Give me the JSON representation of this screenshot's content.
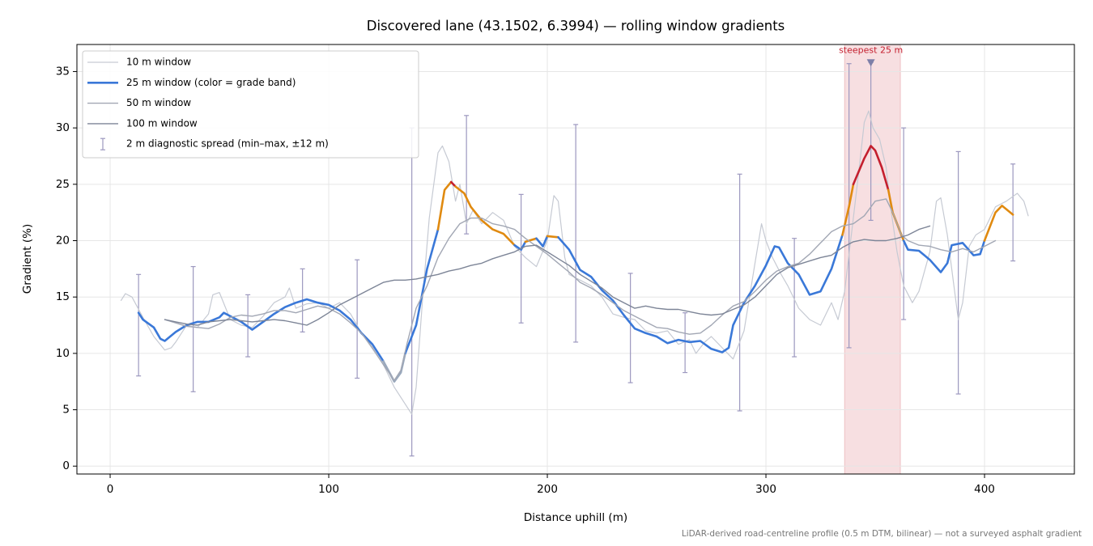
{
  "chart_data": {
    "type": "line",
    "title": "Discovered lane (43.1502, 6.3994) — rolling window gradients",
    "x_label": "Distance uphill (m)",
    "y_label": "Gradient (%)",
    "footnote": "LiDAR-derived road-centreline profile (0.5 m DTM, bilinear) — not a surveyed asphalt gradient",
    "xlim": [
      -15.2,
      441.1
    ],
    "ylim": [
      -0.7,
      37.4
    ],
    "xticks": [
      0,
      100,
      200,
      300,
      400
    ],
    "yticks": [
      0,
      5,
      10,
      15,
      20,
      25,
      30,
      35
    ],
    "grid": true,
    "legend": "upper left",
    "series": [
      {
        "name": "10 m window",
        "color": "#c6cad3",
        "width": 1.2,
        "x": [
          5,
          7,
          10,
          15,
          20,
          25,
          28,
          30,
          35,
          40,
          45,
          47,
          50,
          55,
          60,
          65,
          70,
          75,
          80,
          82,
          85,
          90,
          95,
          100,
          105,
          110,
          115,
          120,
          125,
          130,
          135,
          138,
          140,
          143,
          146,
          150,
          152,
          155,
          158,
          160,
          163,
          166,
          170,
          175,
          180,
          185,
          190,
          195,
          200,
          203,
          205,
          208,
          210,
          215,
          220,
          225,
          230,
          235,
          240,
          245,
          250,
          255,
          260,
          265,
          268,
          272,
          275,
          280,
          285,
          290,
          295,
          298,
          300,
          303,
          307,
          310,
          315,
          320,
          325,
          330,
          333,
          336,
          340,
          343,
          345,
          347,
          349,
          352,
          355,
          357,
          360,
          363,
          367,
          370,
          375,
          378,
          380,
          383,
          386,
          388,
          390,
          393,
          396,
          400,
          405,
          410,
          415,
          418,
          420
        ],
        "values": [
          14.7,
          15.3,
          15.0,
          13.2,
          11.5,
          10.3,
          10.5,
          11.0,
          12.5,
          12.3,
          13.5,
          15.2,
          15.4,
          13.0,
          12.5,
          12.3,
          13.3,
          14.5,
          15.0,
          15.8,
          14.0,
          14.4,
          14.5,
          14.0,
          14.5,
          13.5,
          11.8,
          10.4,
          9.0,
          7.0,
          5.5,
          4.6,
          7.0,
          15.0,
          22.0,
          27.8,
          28.4,
          27.0,
          23.5,
          25.0,
          21.5,
          22.7,
          21.5,
          22.5,
          21.8,
          19.5,
          18.5,
          17.7,
          20.0,
          24.0,
          23.5,
          18.5,
          17.0,
          16.5,
          16.0,
          15.0,
          13.5,
          13.2,
          13.0,
          12.0,
          11.8,
          12.0,
          10.8,
          11.2,
          10.0,
          11.0,
          11.5,
          10.5,
          9.5,
          12.0,
          18.0,
          21.5,
          20.0,
          18.5,
          17.0,
          16.0,
          14.0,
          13.0,
          12.5,
          14.5,
          13.0,
          15.5,
          22.0,
          27.0,
          30.5,
          31.5,
          30.0,
          29.0,
          26.5,
          23.0,
          19.0,
          16.0,
          14.5,
          15.5,
          19.0,
          23.5,
          23.8,
          20.5,
          16.0,
          13.0,
          14.5,
          19.5,
          20.5,
          21.0,
          23.0,
          23.5,
          24.2,
          23.5,
          22.2
        ]
      },
      {
        "name": "25 m window (color = grade band)",
        "color": "#3a78d8",
        "width": 2.6,
        "bands": [
          {
            "max": 10,
            "color": "#9aa9bd"
          },
          {
            "max": 20,
            "color": "#3a78d8"
          },
          {
            "max": 25,
            "color": "#e08a10"
          },
          {
            "max": null,
            "color": "#c41f2e"
          }
        ],
        "x": [
          13,
          15,
          20,
          23,
          25,
          30,
          35,
          40,
          45,
          50,
          52,
          55,
          60,
          65,
          70,
          75,
          80,
          85,
          90,
          95,
          100,
          105,
          110,
          115,
          120,
          125,
          130,
          133,
          135,
          140,
          145,
          150,
          153,
          156,
          158,
          162,
          165,
          170,
          175,
          180,
          185,
          188,
          190,
          195,
          198,
          200,
          205,
          210,
          215,
          220,
          225,
          230,
          235,
          240,
          245,
          250,
          255,
          260,
          265,
          270,
          275,
          280,
          283,
          285,
          290,
          295,
          300,
          304,
          306,
          310,
          315,
          320,
          325,
          330,
          335,
          338,
          340,
          345,
          348,
          350,
          353,
          356,
          358,
          360,
          363,
          365,
          370,
          375,
          380,
          383,
          385,
          390,
          395,
          398,
          400,
          405,
          408,
          413
        ],
        "values": [
          13.6,
          13.0,
          12.3,
          11.3,
          11.1,
          11.9,
          12.5,
          12.8,
          12.8,
          13.2,
          13.6,
          13.3,
          12.8,
          12.1,
          12.8,
          13.5,
          14.1,
          14.5,
          14.8,
          14.5,
          14.3,
          13.8,
          13.0,
          11.8,
          10.8,
          9.3,
          7.5,
          8.3,
          10.0,
          12.5,
          17.5,
          21.0,
          24.5,
          25.2,
          24.8,
          24.2,
          23.0,
          21.8,
          21.0,
          20.6,
          19.6,
          19.2,
          19.9,
          20.2,
          19.5,
          20.4,
          20.3,
          19.2,
          17.4,
          16.8,
          15.6,
          14.7,
          13.4,
          12.2,
          11.8,
          11.5,
          10.9,
          11.2,
          11.0,
          11.1,
          10.4,
          10.1,
          10.5,
          12.5,
          14.5,
          16.0,
          17.8,
          19.5,
          19.4,
          18.0,
          17.0,
          15.2,
          15.5,
          17.5,
          20.5,
          23.0,
          25.0,
          27.3,
          28.4,
          28.0,
          26.5,
          24.5,
          22.5,
          21.5,
          20.0,
          19.2,
          19.1,
          18.3,
          17.2,
          18.0,
          19.6,
          19.8,
          18.7,
          18.8,
          20.0,
          22.5,
          23.1,
          22.3
        ]
      },
      {
        "name": "50 m window",
        "color": "#a2a7b4",
        "width": 1.4,
        "x": [
          25,
          30,
          35,
          40,
          45,
          50,
          55,
          60,
          65,
          70,
          75,
          80,
          85,
          90,
          95,
          100,
          105,
          110,
          115,
          120,
          125,
          130,
          133,
          136,
          140,
          145,
          150,
          155,
          160,
          165,
          170,
          175,
          180,
          185,
          190,
          195,
          200,
          205,
          210,
          215,
          220,
          225,
          230,
          235,
          240,
          245,
          250,
          255,
          260,
          265,
          270,
          275,
          280,
          285,
          290,
          295,
          300,
          305,
          310,
          315,
          320,
          325,
          330,
          335,
          340,
          345,
          350,
          355,
          358,
          362,
          365,
          370,
          375,
          380,
          385,
          390,
          395,
          400,
          405
        ],
        "values": [
          13.0,
          12.7,
          12.4,
          12.3,
          12.2,
          12.6,
          13.2,
          13.4,
          13.3,
          13.5,
          13.8,
          13.8,
          13.6,
          13.9,
          14.2,
          14.0,
          13.5,
          12.7,
          11.8,
          10.5,
          9.0,
          7.6,
          8.5,
          11.0,
          14.0,
          16.0,
          18.5,
          20.2,
          21.5,
          22.0,
          22.0,
          21.5,
          21.3,
          21.0,
          20.2,
          19.5,
          18.8,
          18.0,
          17.2,
          16.3,
          15.8,
          15.2,
          14.5,
          13.8,
          13.3,
          12.8,
          12.3,
          12.2,
          11.9,
          11.7,
          11.8,
          12.5,
          13.4,
          14.2,
          14.6,
          15.5,
          16.5,
          17.3,
          17.7,
          18.0,
          18.8,
          19.8,
          20.8,
          21.3,
          21.5,
          22.2,
          23.5,
          23.7,
          22.5,
          20.5,
          20.0,
          19.6,
          19.5,
          19.2,
          19.0,
          19.3,
          19.0,
          19.5,
          20.0
        ]
      },
      {
        "name": "100 m window",
        "color": "#7d8597",
        "width": 1.4,
        "x": [
          25,
          30,
          35,
          40,
          45,
          50,
          55,
          60,
          65,
          70,
          75,
          80,
          85,
          90,
          95,
          100,
          105,
          110,
          115,
          120,
          125,
          130,
          135,
          140,
          145,
          150,
          155,
          160,
          165,
          170,
          175,
          180,
          185,
          190,
          195,
          200,
          205,
          210,
          215,
          220,
          225,
          230,
          235,
          240,
          245,
          250,
          255,
          260,
          265,
          270,
          275,
          280,
          285,
          290,
          295,
          300,
          305,
          310,
          315,
          320,
          325,
          330,
          335,
          340,
          345,
          350,
          355,
          360,
          365,
          370,
          375
        ],
        "values": [
          13.0,
          12.8,
          12.6,
          12.5,
          12.8,
          12.9,
          13.0,
          12.9,
          12.8,
          12.9,
          13.0,
          12.9,
          12.7,
          12.5,
          13.0,
          13.6,
          14.3,
          14.8,
          15.3,
          15.8,
          16.3,
          16.5,
          16.5,
          16.6,
          16.8,
          17.0,
          17.3,
          17.5,
          17.8,
          18.0,
          18.4,
          18.7,
          19.0,
          19.5,
          19.6,
          19.0,
          18.4,
          17.8,
          17.0,
          16.4,
          15.8,
          15.0,
          14.5,
          14.0,
          14.2,
          14.0,
          13.9,
          13.9,
          13.7,
          13.5,
          13.4,
          13.5,
          13.9,
          14.3,
          15.0,
          16.0,
          17.0,
          17.6,
          17.9,
          18.2,
          18.5,
          18.7,
          19.4,
          19.9,
          20.1,
          20.0,
          20.0,
          20.2,
          20.5,
          21.0,
          21.3
        ]
      }
    ],
    "error_bars": {
      "name": "2 m diagnostic spread (min–max, ±12 m)",
      "color": "#9c98bf",
      "x": [
        13,
        38,
        63,
        88,
        113,
        138,
        163,
        188,
        213,
        238,
        263,
        288,
        313,
        338,
        348,
        363,
        388,
        413
      ],
      "low": [
        8.0,
        6.6,
        9.7,
        11.9,
        7.8,
        0.9,
        20.6,
        12.7,
        11.0,
        7.4,
        8.3,
        4.9,
        9.7,
        10.5,
        21.8,
        13.0,
        6.4,
        18.2
      ],
      "high": [
        17.0,
        17.7,
        15.2,
        17.5,
        18.3,
        30.0,
        31.1,
        24.1,
        30.3,
        17.1,
        13.6,
        25.9,
        20.2,
        35.7,
        35.8,
        30.0,
        27.9,
        26.8
      ]
    },
    "span": {
      "xlim": [
        336,
        361.5
      ],
      "color": "#e8a3a8"
    },
    "annotation": {
      "text": "steepest 25 m",
      "x": 348,
      "y": 35.8,
      "color": "#c41f2e"
    }
  }
}
